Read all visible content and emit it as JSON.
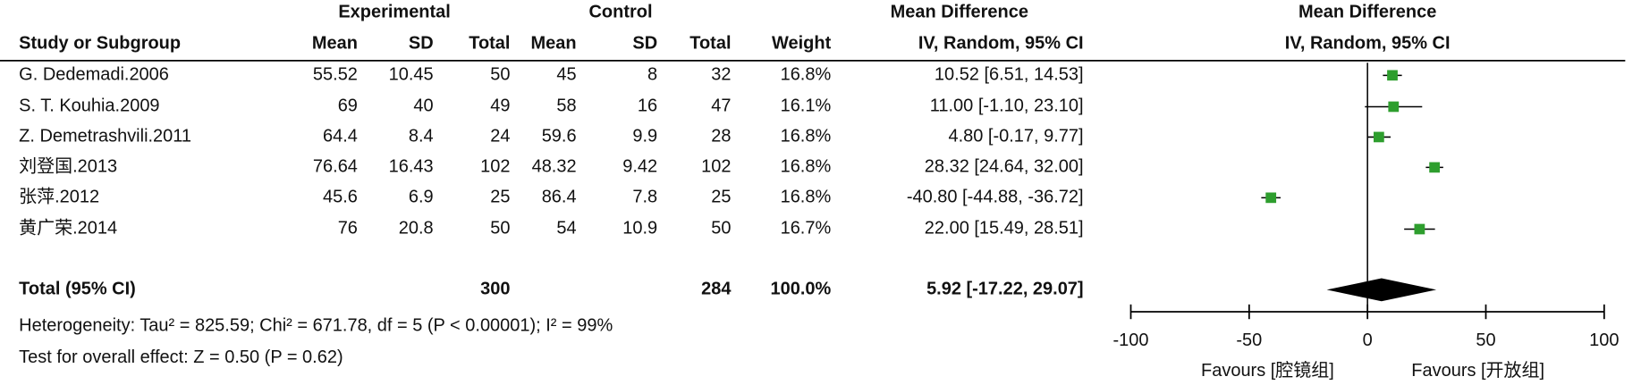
{
  "chart_data": {
    "type": "forest",
    "group_headers": [
      "Experimental",
      "Control",
      "Mean Difference"
    ],
    "columns": [
      "Study or Subgroup",
      "Mean",
      "SD",
      "Total",
      "Mean",
      "SD",
      "Total",
      "Weight",
      "IV, Random, 95% CI"
    ],
    "rows": [
      [
        "G. Dedemadi.2006",
        "55.52",
        "10.45",
        "50",
        "45",
        "8",
        "32",
        "16.8%",
        "10.52 [6.51, 14.53]"
      ],
      [
        "S. T. Kouhia.2009",
        "69",
        "40",
        "49",
        "58",
        "16",
        "47",
        "16.1%",
        "11.00 [-1.10, 23.10]"
      ],
      [
        "Z. Demetrashvili.2011",
        "64.4",
        "8.4",
        "24",
        "59.6",
        "9.9",
        "28",
        "16.8%",
        "4.80 [-0.17, 9.77]"
      ],
      [
        "刘登国.2013",
        "76.64",
        "16.43",
        "102",
        "48.32",
        "9.42",
        "102",
        "16.8%",
        "28.32 [24.64, 32.00]"
      ],
      [
        "张萍.2012",
        "45.6",
        "6.9",
        "25",
        "86.4",
        "7.8",
        "25",
        "16.8%",
        "-40.80 [-44.88, -36.72]"
      ],
      [
        "黄广荣.2014",
        "76",
        "20.8",
        "50",
        "54",
        "10.9",
        "50",
        "16.7%",
        "22.00 [15.49, 28.51]"
      ]
    ],
    "total": {
      "label": "Total (95% CI)",
      "exp_total": "300",
      "ctrl_total": "284",
      "weight": "100.0%",
      "ci": "5.92 [-17.22, 29.07]"
    },
    "heterogeneity": "Heterogeneity: Tau² = 825.59; Chi² = 671.78, df = 5 (P < 0.00001); I² = 99%",
    "overall_effect": "Test for overall effect: Z = 0.50 (P = 0.62)",
    "plot_title": "Mean Difference",
    "plot_subtitle": "IV, Random, 95% CI",
    "md": [
      10.52,
      11,
      4.8,
      28.32,
      -40.8,
      22
    ],
    "ci_low": [
      6.51,
      -1.1,
      -0.17,
      24.64,
      -44.88,
      15.49
    ],
    "ci_high": [
      14.53,
      23.1,
      9.77,
      32,
      -36.72,
      28.51
    ],
    "pooled": {
      "md": 5.92,
      "ci_low": -17.22,
      "ci_high": 29.07
    },
    "xlim": [
      -100,
      100
    ],
    "xticks": [
      -100,
      -50,
      0,
      50,
      100
    ],
    "x_label_left": "Favours [腔镜组]",
    "x_label_right": "Favours [开放组]",
    "color": "#2e9e2e"
  }
}
